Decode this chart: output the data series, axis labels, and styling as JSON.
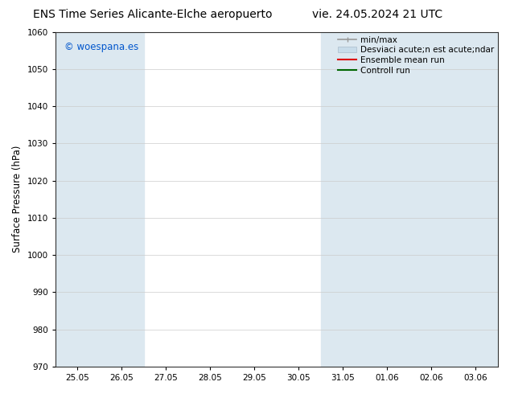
{
  "title_left": "ENS Time Series Alicante-Elche aeropuerto",
  "title_right": "vie. 24.05.2024 21 UTC",
  "ylabel": "Surface Pressure (hPa)",
  "ylim": [
    970,
    1060
  ],
  "yticks": [
    970,
    980,
    990,
    1000,
    1010,
    1020,
    1030,
    1040,
    1050,
    1060
  ],
  "x_tick_labels": [
    "25.05",
    "26.05",
    "27.05",
    "28.05",
    "29.05",
    "30.05",
    "31.05",
    "01.06",
    "02.06",
    "03.06"
  ],
  "x_tick_positions": [
    0,
    1,
    2,
    3,
    4,
    5,
    6,
    7,
    8,
    9
  ],
  "xlim": [
    -0.5,
    9.5
  ],
  "shaded_bands": [
    {
      "xmin": -0.5,
      "xmax": 0.5,
      "color": "#dce8f0"
    },
    {
      "xmin": 0.5,
      "xmax": 1.5,
      "color": "#dce8f0"
    },
    {
      "xmin": 5.5,
      "xmax": 6.5,
      "color": "#dce8f0"
    },
    {
      "xmin": 6.5,
      "xmax": 7.5,
      "color": "#dce8f0"
    },
    {
      "xmin": 7.5,
      "xmax": 8.5,
      "color": "#dce8f0"
    },
    {
      "xmin": 8.5,
      "xmax": 9.5,
      "color": "#dce8f0"
    }
  ],
  "watermark_text": "© woespana.es",
  "watermark_color": "#0055cc",
  "background_color": "#ffffff",
  "plot_bg_color": "#ffffff",
  "title_fontsize": 10,
  "axis_label_fontsize": 8.5,
  "tick_fontsize": 7.5,
  "legend_fontsize": 7.5,
  "watermark_fontsize": 8.5,
  "minmax_color": "#999999",
  "desviac_face_color": "#c8dcea",
  "desviac_edge_color": "#aabccc",
  "ensemble_color": "#dd0000",
  "control_color": "#006600"
}
